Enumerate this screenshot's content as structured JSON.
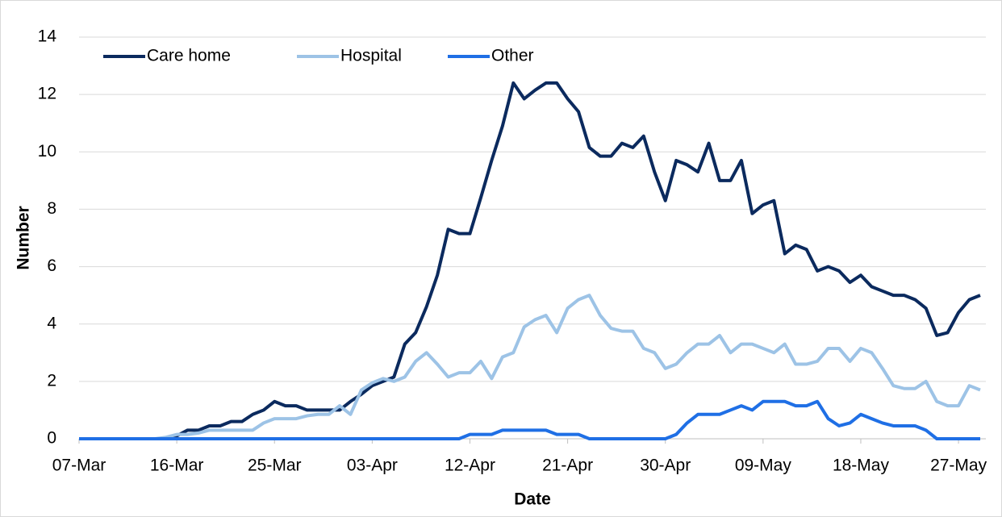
{
  "chart_data": {
    "type": "line",
    "x_label": "Date",
    "y_label": "Number",
    "categories": [
      "07-Mar",
      null,
      null,
      null,
      null,
      null,
      null,
      null,
      null,
      "16-Mar",
      null,
      null,
      null,
      null,
      null,
      null,
      null,
      null,
      "25-Mar",
      null,
      null,
      null,
      null,
      null,
      null,
      null,
      null,
      "03-Apr",
      null,
      null,
      null,
      null,
      null,
      null,
      null,
      null,
      "12-Apr",
      null,
      null,
      null,
      null,
      null,
      null,
      null,
      null,
      "21-Apr",
      null,
      null,
      null,
      null,
      null,
      null,
      null,
      null,
      "30-Apr",
      null,
      null,
      null,
      null,
      null,
      null,
      null,
      null,
      "09-May",
      null,
      null,
      null,
      null,
      null,
      null,
      null,
      null,
      "18-May",
      null,
      null,
      null,
      null,
      null,
      null,
      null,
      null,
      "27-May",
      null,
      null
    ],
    "series": [
      {
        "name": "Care home",
        "color": "#0b2a5e",
        "values": [
          0,
          0,
          0,
          0,
          0,
          0,
          0,
          0,
          0,
          0.1,
          0.3,
          0.3,
          0.45,
          0.45,
          0.6,
          0.6,
          0.85,
          1.0,
          1.3,
          1.15,
          1.15,
          1.0,
          1.0,
          1.0,
          1.0,
          1.3,
          1.55,
          1.85,
          2.0,
          2.15,
          3.3,
          3.7,
          4.6,
          5.7,
          7.3,
          7.15,
          7.15,
          8.4,
          9.7,
          10.9,
          12.4,
          11.85,
          12.15,
          12.4,
          12.4,
          11.85,
          11.4,
          10.15,
          9.85,
          9.85,
          10.3,
          10.15,
          10.55,
          9.3,
          8.3,
          9.7,
          9.55,
          9.3,
          10.3,
          9.0,
          9.0,
          9.7,
          7.85,
          8.15,
          8.3,
          6.45,
          6.75,
          6.6,
          5.85,
          6.0,
          5.85,
          5.45,
          5.7,
          5.3,
          5.15,
          5.0,
          5.0,
          4.85,
          4.55,
          3.6,
          3.7,
          4.4,
          4.85,
          5.0
        ]
      },
      {
        "name": "Hospital",
        "color": "#9dc3e6",
        "values": [
          0,
          0,
          0,
          0,
          0,
          0,
          0,
          0,
          0.05,
          0.15,
          0.15,
          0.2,
          0.3,
          0.3,
          0.3,
          0.3,
          0.3,
          0.55,
          0.7,
          0.7,
          0.7,
          0.8,
          0.85,
          0.85,
          1.15,
          0.85,
          1.7,
          1.95,
          2.1,
          2.0,
          2.15,
          2.7,
          3.0,
          2.6,
          2.15,
          2.3,
          2.3,
          2.7,
          2.1,
          2.85,
          3.0,
          3.9,
          4.15,
          4.3,
          3.7,
          4.55,
          4.85,
          5.0,
          4.3,
          3.85,
          3.75,
          3.75,
          3.15,
          3.0,
          2.45,
          2.6,
          3.0,
          3.3,
          3.3,
          3.6,
          3.0,
          3.3,
          3.3,
          3.15,
          3.0,
          3.3,
          2.6,
          2.6,
          2.7,
          3.15,
          3.15,
          2.7,
          3.15,
          3.0,
          2.45,
          1.85,
          1.75,
          1.75,
          2.0,
          1.3,
          1.15,
          1.15,
          1.85,
          1.7
        ]
      },
      {
        "name": "Other",
        "color": "#1f6fe5",
        "values": [
          0,
          0,
          0,
          0,
          0,
          0,
          0,
          0,
          0,
          0,
          0,
          0,
          0,
          0,
          0,
          0,
          0,
          0,
          0,
          0,
          0,
          0,
          0,
          0,
          0,
          0,
          0,
          0,
          0,
          0,
          0,
          0,
          0,
          0,
          0,
          0,
          0.15,
          0.15,
          0.15,
          0.3,
          0.3,
          0.3,
          0.3,
          0.3,
          0.15,
          0.15,
          0.15,
          0,
          0,
          0,
          0,
          0,
          0,
          0,
          0,
          0.15,
          0.55,
          0.85,
          0.85,
          0.85,
          1.0,
          1.15,
          1.0,
          1.3,
          1.3,
          1.3,
          1.15,
          1.15,
          1.3,
          0.7,
          0.45,
          0.55,
          0.85,
          0.7,
          0.55,
          0.45,
          0.45,
          0.45,
          0.3,
          0,
          0,
          0,
          0,
          0
        ]
      }
    ],
    "ylim": [
      0,
      14
    ],
    "yticks": [
      0,
      2,
      4,
      6,
      8,
      10,
      12,
      14
    ],
    "grid": true,
    "legend": "upper left"
  }
}
